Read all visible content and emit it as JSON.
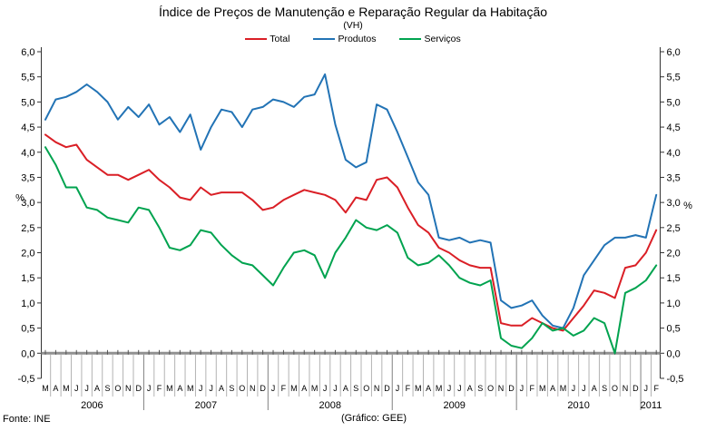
{
  "header": {
    "title": "Índice de Preços de Manutenção e Reparação Regular da Habitação",
    "subtitle": "(VH)"
  },
  "footer": {
    "source": "Fonte: INE",
    "credit": "(Gráfico: GEE)"
  },
  "chart_data": {
    "type": "line",
    "title": "Índice de Preços de Manutenção e Reparação Regular da Habitação",
    "subtitle": "(VH)",
    "ylabel_left": "%",
    "ylabel_right": "%",
    "ylim": [
      -0.5,
      6.0
    ],
    "y_step": 0.5,
    "y_tick_labels": [
      "6,0",
      "5,5",
      "5,0",
      "4,5",
      "4,0",
      "3,5",
      "3,0",
      "2,5",
      "2,0",
      "1,5",
      "1,0",
      "0,5",
      "0,0",
      "-0,5"
    ],
    "grid": false,
    "legend_position": "top-center",
    "x_tick_labels": [
      "M",
      "A",
      "M",
      "J",
      "J",
      "A",
      "S",
      "O",
      "N",
      "D",
      "J",
      "F",
      "M",
      "A",
      "M",
      "J",
      "J",
      "A",
      "S",
      "O",
      "N",
      "D",
      "J",
      "F",
      "M",
      "A",
      "M",
      "J",
      "J",
      "A",
      "S",
      "O",
      "N",
      "D",
      "J",
      "F",
      "M",
      "A",
      "M",
      "J",
      "J",
      "A",
      "S",
      "O",
      "N",
      "D",
      "J",
      "F",
      "M",
      "A",
      "M",
      "J",
      "J",
      "A",
      "S",
      "O",
      "N",
      "D",
      "J",
      "F"
    ],
    "year_groups": [
      {
        "label": "2006",
        "months": 10
      },
      {
        "label": "2007",
        "months": 12
      },
      {
        "label": "2008",
        "months": 12
      },
      {
        "label": "2009",
        "months": 12
      },
      {
        "label": "2010",
        "months": 12
      },
      {
        "label": "2011",
        "months": 2
      }
    ],
    "series": [
      {
        "name": "Total",
        "color": "#da1f26",
        "values": [
          4.35,
          4.2,
          4.1,
          4.15,
          3.85,
          3.7,
          3.55,
          3.55,
          3.45,
          3.55,
          3.65,
          3.45,
          3.3,
          3.1,
          3.05,
          3.3,
          3.15,
          3.2,
          3.2,
          3.2,
          3.05,
          2.85,
          2.9,
          3.05,
          3.15,
          3.25,
          3.2,
          3.15,
          3.05,
          2.8,
          3.1,
          3.05,
          3.45,
          3.5,
          3.3,
          2.9,
          2.55,
          2.4,
          2.1,
          2.0,
          1.85,
          1.75,
          1.7,
          1.7,
          0.6,
          0.55,
          0.55,
          0.7,
          0.6,
          0.5,
          0.45,
          0.7,
          0.95,
          1.25,
          1.2,
          1.1,
          1.7,
          1.75,
          2.0,
          2.45
        ]
      },
      {
        "name": "Produtos",
        "color": "#2273b5",
        "values": [
          4.65,
          5.05,
          5.1,
          5.2,
          5.35,
          5.2,
          5.0,
          4.65,
          4.9,
          4.7,
          4.95,
          4.55,
          4.7,
          4.4,
          4.75,
          4.05,
          4.5,
          4.85,
          4.8,
          4.5,
          4.85,
          4.9,
          5.05,
          5.0,
          4.9,
          5.1,
          5.15,
          5.55,
          4.55,
          3.85,
          3.7,
          3.8,
          4.95,
          4.85,
          4.4,
          3.9,
          3.4,
          3.15,
          2.3,
          2.25,
          2.3,
          2.2,
          2.25,
          2.2,
          1.05,
          0.9,
          0.95,
          1.05,
          0.75,
          0.55,
          0.5,
          0.9,
          1.55,
          1.85,
          2.15,
          2.3,
          2.3,
          2.35,
          2.3,
          3.15
        ]
      },
      {
        "name": "Serviços",
        "color": "#00a34f",
        "values": [
          4.1,
          3.75,
          3.3,
          3.3,
          2.9,
          2.85,
          2.7,
          2.65,
          2.6,
          2.9,
          2.85,
          2.5,
          2.1,
          2.05,
          2.15,
          2.45,
          2.4,
          2.15,
          1.95,
          1.8,
          1.75,
          1.55,
          1.35,
          1.7,
          2.0,
          2.05,
          1.95,
          1.5,
          2.0,
          2.3,
          2.65,
          2.5,
          2.45,
          2.55,
          2.4,
          1.9,
          1.75,
          1.8,
          1.95,
          1.75,
          1.5,
          1.4,
          1.35,
          1.45,
          0.3,
          0.15,
          0.1,
          0.3,
          0.6,
          0.45,
          0.5,
          0.35,
          0.45,
          0.7,
          0.6,
          0.0,
          1.2,
          1.3,
          1.45,
          1.75
        ]
      }
    ]
  }
}
